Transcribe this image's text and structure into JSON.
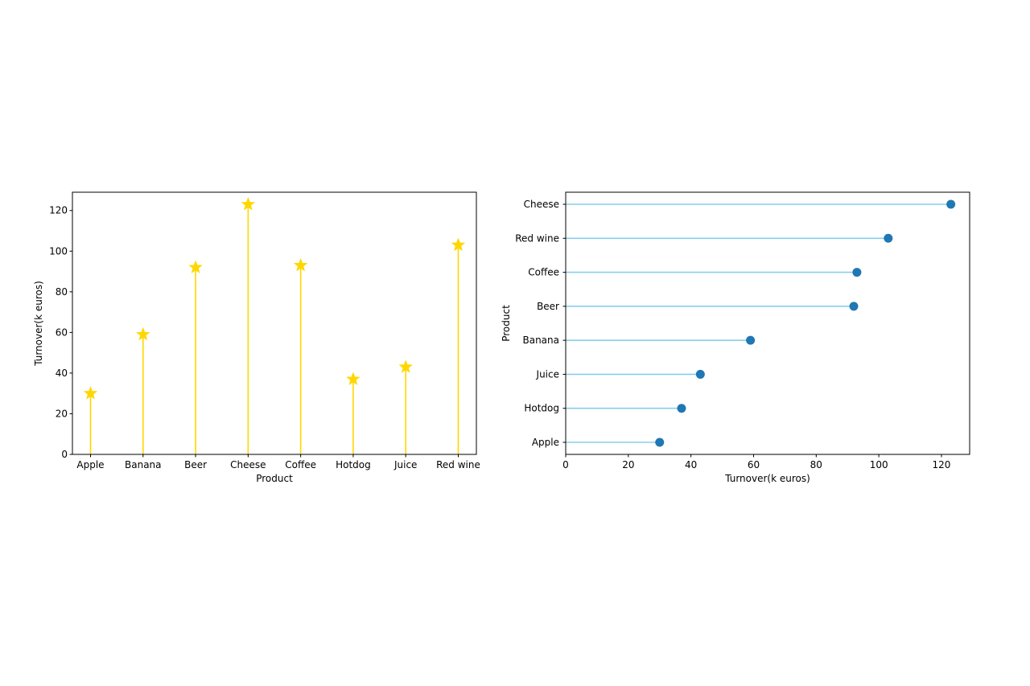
{
  "chart_data": [
    {
      "type": "lollipop-vertical",
      "xlabel": "Product",
      "ylabel": "Turnover(k euros)",
      "categories": [
        "Apple",
        "Banana",
        "Beer",
        "Cheese",
        "Coffee",
        "Hotdog",
        "Juice",
        "Red wine"
      ],
      "values": [
        30,
        59,
        92,
        123,
        93,
        37,
        43,
        103
      ],
      "ylim": [
        0,
        129
      ],
      "yticks": [
        0,
        20,
        40,
        60,
        80,
        100,
        120
      ],
      "marker": "star",
      "color": "#FFD700",
      "grid": false
    },
    {
      "type": "lollipop-horizontal",
      "xlabel": "Turnover(k euros)",
      "ylabel": "Product",
      "categories": [
        "Apple",
        "Hotdog",
        "Juice",
        "Banana",
        "Beer",
        "Coffee",
        "Red wine",
        "Cheese"
      ],
      "values": [
        30,
        37,
        43,
        59,
        92,
        93,
        103,
        123
      ],
      "xlim": [
        0,
        129
      ],
      "xticks": [
        0,
        20,
        40,
        60,
        80,
        100,
        120
      ],
      "marker": "circle",
      "stem_color": "#87CEEB",
      "marker_color": "#1f77b4",
      "grid": false
    }
  ]
}
